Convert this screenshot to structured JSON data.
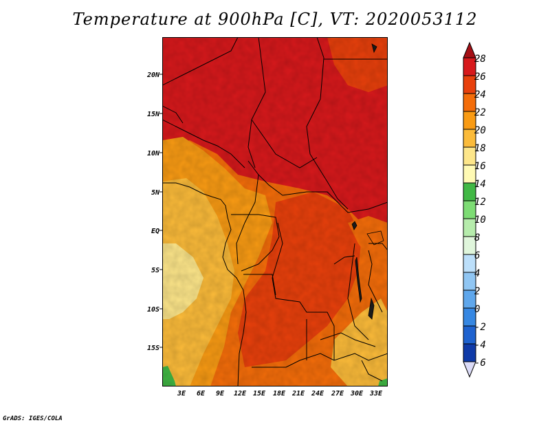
{
  "title": "Temperature at 900hPa [C], VT: 2020053112",
  "footer": "GrADS: IGES/COLA",
  "map": {
    "lat_labels": [
      "20N",
      "15N",
      "10N",
      "5N",
      "EQ",
      "5S",
      "10S",
      "15S"
    ],
    "lon_labels": [
      "3E",
      "6E",
      "9E",
      "12E",
      "15E",
      "18E",
      "21E",
      "24E",
      "27E",
      "30E",
      "33E"
    ]
  },
  "colorbar": {
    "labels": [
      "28",
      "26",
      "24",
      "22",
      "20",
      "18",
      "16",
      "14",
      "12",
      "10",
      "8",
      "6",
      "4",
      "2",
      "0",
      "-2",
      "-4",
      "-6"
    ],
    "colors": {
      "above_28": "#a50f15",
      "26_28": "#d7191c",
      "24_26": "#e8400c",
      "22_24": "#f46d0a",
      "20_22": "#f99b14",
      "18_20": "#fbbb3a",
      "16_18": "#fde68a",
      "14_16": "#fffab4",
      "12_14": "#41b845",
      "10_12": "#7ddc74",
      "8_10": "#b6ecac",
      "6_8": "#e0f6dc",
      "4_6": "#bcdffa",
      "2_4": "#90c6f3",
      "0_2": "#5fa7ec",
      "m2_0": "#3687e2",
      "m4_m2": "#1e62cf",
      "m6_m4": "#0f3aa8",
      "below_m6": "#051a6e",
      "lower_arrow": "#dcdcf8"
    }
  }
}
